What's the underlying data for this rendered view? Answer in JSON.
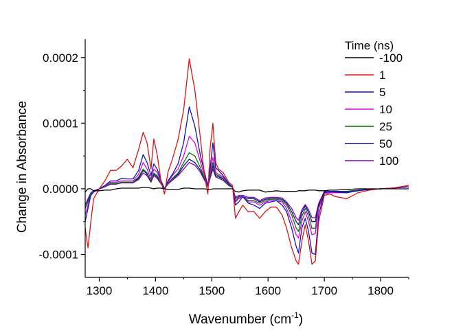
{
  "chart_data": {
    "type": "line",
    "title": "",
    "xlabel": "Wavenumber (cm",
    "xlabel_sup": "-1",
    "xlabel_end": ")",
    "ylabel": "Change in Absorbance",
    "xlim": [
      1275,
      1850
    ],
    "ylim": [
      -0.000135,
      0.000228
    ],
    "x_ticks": [
      1300,
      1400,
      1500,
      1600,
      1700,
      1800
    ],
    "x_tick_labels": [
      "1300",
      "1400",
      "1500",
      "1600",
      "1700",
      "1800"
    ],
    "y_ticks": [
      -0.0001,
      0.0,
      0.0001,
      0.0002
    ],
    "y_tick_labels": [
      "-0.0001",
      "0.0000",
      "0.0001",
      "0.0002"
    ],
    "grid": false,
    "legend": {
      "title": "Time (ns)",
      "placement": "top-right"
    },
    "x": [
      1275,
      1280,
      1285,
      1290,
      1300,
      1310,
      1320,
      1330,
      1340,
      1350,
      1360,
      1370,
      1378,
      1385,
      1392,
      1397,
      1403,
      1410,
      1416,
      1422,
      1430,
      1440,
      1450,
      1460,
      1470,
      1480,
      1487,
      1493,
      1497,
      1502,
      1507,
      1512,
      1520,
      1530,
      1537,
      1542,
      1548,
      1555,
      1565,
      1575,
      1585,
      1595,
      1605,
      1615,
      1625,
      1633,
      1642,
      1650,
      1654,
      1660,
      1666,
      1672,
      1678,
      1684,
      1690,
      1700,
      1710,
      1720,
      1740,
      1760,
      1780,
      1800,
      1820,
      1850
    ],
    "series": [
      {
        "name": "-100",
        "color": "#000000",
        "values": [
          -5e-06,
          0.0,
          0.0,
          -3e-06,
          -3e-06,
          -2e-06,
          -2e-06,
          0.0,
          1e-06,
          1e-06,
          1e-06,
          1e-06,
          2e-06,
          2e-06,
          1e-06,
          0.0,
          1e-06,
          1e-06,
          0.0,
          -1e-06,
          -1e-06,
          -1e-06,
          1e-06,
          1e-06,
          0.0,
          0.0,
          0.0,
          -1e-06,
          -1e-06,
          0.0,
          0.0,
          0.0,
          0.0,
          0.0,
          0.0,
          -4e-06,
          -5e-06,
          -3e-06,
          -2e-06,
          -2e-06,
          -2e-06,
          -5e-06,
          -4e-06,
          -3e-06,
          -4e-06,
          -4e-06,
          -4e-06,
          -4e-06,
          -3e-06,
          -3e-06,
          -3e-06,
          -2e-06,
          -2e-06,
          -2e-06,
          -3e-06,
          -3e-06,
          -2e-06,
          -2e-06,
          -1e-06,
          0.0,
          0.0,
          0.0,
          0.0,
          0.0
        ]
      },
      {
        "name": "1",
        "color": "#e01010",
        "values": [
          -6e-05,
          -9e-05,
          -5e-05,
          -1.5e-05,
          0.0,
          1.2e-05,
          2.8e-05,
          2.8e-05,
          3.5e-05,
          4.5e-05,
          3.2e-05,
          6e-05,
          8.6e-05,
          7e-05,
          3e-05,
          7.6e-05,
          5.2e-05,
          1e-05,
          -8e-06,
          2.5e-05,
          4.5e-05,
          7.5e-05,
          0.00012,
          0.000198,
          0.00015,
          7.5e-05,
          2e-05,
          -8e-06,
          6e-05,
          0.0001,
          4e-05,
          3e-05,
          2.5e-05,
          1e-05,
          5e-06,
          -4.5e-05,
          -3.5e-05,
          -2.5e-05,
          -3.5e-05,
          -3.5e-05,
          -4.5e-05,
          -3.5e-05,
          -2.8e-05,
          -2.8e-05,
          -4e-05,
          -6e-05,
          -9e-05,
          -0.00011,
          -0.000115,
          -8e-05,
          -5.5e-05,
          -8e-05,
          -0.000115,
          -0.00011,
          -5e-05,
          -1e-05,
          -8e-06,
          -1.2e-05,
          -1.5e-05,
          -6e-06,
          -2e-06,
          0.0,
          1e-06,
          5e-06
        ]
      },
      {
        "name": "5",
        "color": "#1010c8",
        "values": [
          -5e-05,
          -3e-05,
          -1e-05,
          -5e-06,
          0.0,
          5e-06,
          1.2e-05,
          1.2e-05,
          1.6e-05,
          1.5e-05,
          1.5e-05,
          2.8e-05,
          5.2e-05,
          4e-05,
          2e-05,
          3.8e-05,
          3e-05,
          1.2e-05,
          0.0,
          1.2e-05,
          2.2e-05,
          3.8e-05,
          7e-05,
          0.000125,
          9.5e-05,
          5e-05,
          2.5e-05,
          5e-06,
          3e-05,
          7e-05,
          3.2e-05,
          2.8e-05,
          2e-05,
          8e-06,
          2e-06,
          -2.5e-05,
          -2e-05,
          -1.2e-05,
          -2.2e-05,
          -2.5e-05,
          -3e-05,
          -2.2e-05,
          -2e-05,
          -1.8e-05,
          -2.5e-05,
          -3.5e-05,
          -6e-05,
          -8.8e-05,
          -9.8e-05,
          -6e-05,
          -4.5e-05,
          -6.5e-05,
          -9.8e-05,
          -0.0001,
          -4e-05,
          -6e-06,
          -4e-06,
          -5e-06,
          -6e-06,
          -3e-06,
          -1e-06,
          0.0,
          1e-06,
          3e-06
        ]
      },
      {
        "name": "10",
        "color": "#e000e0",
        "values": [
          -4e-05,
          -2.5e-05,
          -1e-05,
          -5e-06,
          0.0,
          4e-06,
          1e-05,
          1e-05,
          1.2e-05,
          1.2e-05,
          1.2e-05,
          2.2e-05,
          4e-05,
          3e-05,
          1.5e-05,
          3e-05,
          2.5e-05,
          1e-05,
          0.0,
          1e-05,
          2e-05,
          3e-05,
          5e-05,
          8e-05,
          7e-05,
          4e-05,
          2e-05,
          3e-06,
          2.5e-05,
          4.8e-05,
          2.5e-05,
          2.2e-05,
          1.8e-05,
          8e-06,
          2e-06,
          -2e-05,
          -1.5e-05,
          -1.2e-05,
          -2e-05,
          -2e-05,
          -2.5e-05,
          -2e-05,
          -1.8e-05,
          -1.8e-05,
          -2e-05,
          -3e-05,
          -5e-05,
          -7e-05,
          -7.5e-05,
          -5e-05,
          -3.5e-05,
          -5e-05,
          -7e-05,
          -6.8e-05,
          -3e-05,
          -8e-06,
          -6e-06,
          -6e-06,
          -6e-06,
          -3e-06,
          -1e-06,
          0.0,
          1e-06,
          3e-06
        ]
      },
      {
        "name": "25",
        "color": "#007a00",
        "values": [
          -3e-05,
          -2e-05,
          -8e-06,
          -4e-06,
          0.0,
          3e-06,
          8e-06,
          8e-06,
          1e-05,
          1e-05,
          1e-05,
          1.8e-05,
          3e-05,
          2.4e-05,
          1.2e-05,
          2.4e-05,
          2e-05,
          8e-06,
          0.0,
          8e-06,
          1.6e-05,
          2.4e-05,
          4e-05,
          5.5e-05,
          5e-05,
          3.2e-05,
          1.6e-05,
          3e-06,
          2e-05,
          4e-05,
          2.2e-05,
          2e-05,
          1.6e-05,
          6e-06,
          2e-06,
          -1.8e-05,
          -1.4e-05,
          -1.2e-05,
          -1.8e-05,
          -1.8e-05,
          -2.2e-05,
          -1.8e-05,
          -1.6e-05,
          -1.6e-05,
          -1.8e-05,
          -2.5e-05,
          -4e-05,
          -6e-05,
          -6.5e-05,
          -4.2e-05,
          -3e-05,
          -4.2e-05,
          -6e-05,
          -6e-05,
          -2.8e-05,
          -6e-06,
          -5e-06,
          -5e-06,
          -5e-06,
          -2e-06,
          -1e-06,
          0.0,
          1e-06,
          3e-06
        ]
      },
      {
        "name": "50",
        "color": "#101080",
        "values": [
          -3e-05,
          -1.8e-05,
          -8e-06,
          -4e-06,
          0.0,
          3e-06,
          8e-06,
          8e-06,
          1e-05,
          1e-05,
          1e-05,
          1.6e-05,
          2.8e-05,
          2.2e-05,
          1.2e-05,
          2.2e-05,
          1.8e-05,
          8e-06,
          0.0,
          8e-06,
          1.5e-05,
          2.2e-05,
          3.5e-05,
          4.5e-05,
          4e-05,
          2.8e-05,
          1.5e-05,
          3e-06,
          1.8e-05,
          3.5e-05,
          2e-05,
          1.8e-05,
          1.5e-05,
          6e-06,
          2e-06,
          -1.5e-05,
          -1.2e-05,
          -1.2e-05,
          -1.5e-05,
          -1.5e-05,
          -2e-05,
          -1.6e-05,
          -1.5e-05,
          -1.5e-05,
          -1.6e-05,
          -2.2e-05,
          -3.5e-05,
          -5e-05,
          -5.5e-05,
          -3.6e-05,
          -2.6e-05,
          -3.6e-05,
          -5e-05,
          -5e-05,
          -2.5e-05,
          -5e-06,
          -4e-06,
          -4e-06,
          -4e-06,
          -2e-06,
          -1e-06,
          0.0,
          1e-06,
          3e-06
        ]
      },
      {
        "name": "100",
        "color": "#8000c0",
        "values": [
          -2.5e-05,
          -1.5e-05,
          -6e-06,
          -3e-06,
          0.0,
          3e-06,
          7e-06,
          7e-06,
          9e-06,
          9e-06,
          9e-06,
          1.4e-05,
          2.4e-05,
          2e-05,
          1e-05,
          2e-05,
          1.6e-05,
          7e-06,
          0.0,
          7e-06,
          1.3e-05,
          2e-05,
          3e-05,
          4e-05,
          3.6e-05,
          2.5e-05,
          1.3e-05,
          3e-06,
          1.6e-05,
          3e-05,
          1.8e-05,
          1.6e-05,
          1.3e-05,
          5e-06,
          2e-06,
          -1.3e-05,
          -1e-05,
          -1e-05,
          -1.3e-05,
          -1.3e-05,
          -1.8e-05,
          -1.4e-05,
          -1.3e-05,
          -1.3e-05,
          -1.4e-05,
          -2e-05,
          -3e-05,
          -4.4e-05,
          -4.8e-05,
          -3.2e-05,
          -2.4e-05,
          -3.2e-05,
          -4.4e-05,
          -4.4e-05,
          -2.2e-05,
          -4e-06,
          -4e-06,
          -4e-06,
          -4e-06,
          -2e-06,
          -1e-06,
          0.0,
          1e-06,
          3e-06
        ]
      }
    ]
  }
}
